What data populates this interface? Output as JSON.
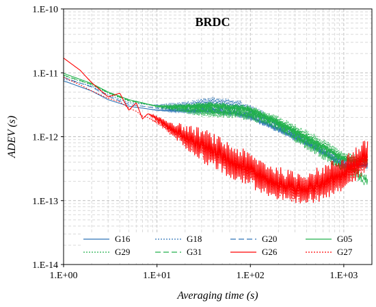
{
  "chart_data": {
    "type": "line",
    "title": "BRDC",
    "xlabel": "Averaging time (s)",
    "ylabel": "ADEV (s)",
    "x_scale": "log",
    "y_scale": "log",
    "xlim": [
      1,
      2000
    ],
    "ylim": [
      1e-14,
      1e-10
    ],
    "x_ticks": [
      "1.E+00",
      "1.E+01",
      "1.E+02",
      "1.E+03"
    ],
    "y_ticks": [
      "1.E-10",
      "1.E-11",
      "1.E-12",
      "1.E-13",
      "1.E-14"
    ],
    "grid": "major and minor, dashed",
    "legend_position": "bottom, inside plot",
    "colors": {
      "blue": "#2e75b6",
      "green": "#22b14c",
      "red": "#ff0000"
    },
    "series": [
      {
        "name": "G16",
        "color": "#2e75b6",
        "dash": "solid",
        "noise": 0.05,
        "x": [
          1,
          2,
          3,
          5,
          10,
          20,
          40,
          70,
          100,
          200,
          500,
          1000,
          1800
        ],
        "y": [
          7.5e-12,
          5.2e-12,
          3.8e-12,
          3e-12,
          2.6e-12,
          2.5e-12,
          2.5e-12,
          2.3e-12,
          2e-12,
          1.3e-12,
          6.5e-13,
          3.5e-13,
          3.5e-13
        ]
      },
      {
        "name": "G18",
        "color": "#2e75b6",
        "dash": "2,2",
        "noise": 0.07,
        "x": [
          1,
          2,
          3,
          5,
          10,
          20,
          40,
          70,
          100,
          200,
          500,
          1000,
          1800
        ],
        "y": [
          8e-12,
          6.2e-12,
          4.5e-12,
          3.4e-12,
          3.1e-12,
          3.2e-12,
          3.6e-12,
          3.3e-12,
          2.8e-12,
          1.6e-12,
          7e-13,
          4e-13,
          3.8e-13
        ]
      },
      {
        "name": "G20",
        "color": "#2e75b6",
        "dash": "8,4",
        "noise": 0.05,
        "x": [
          1,
          2,
          3,
          5,
          10,
          20,
          40,
          70,
          100,
          200,
          500,
          1000,
          1800
        ],
        "y": [
          8.5e-12,
          6e-12,
          4.3e-12,
          3.2e-12,
          2.8e-12,
          2.7e-12,
          2.8e-12,
          2.6e-12,
          2.3e-12,
          1.5e-12,
          7e-13,
          3.8e-13,
          3.6e-13
        ]
      },
      {
        "name": "G05",
        "color": "#22b14c",
        "dash": "solid",
        "noise": 0.06,
        "x": [
          1,
          2,
          3,
          5,
          10,
          20,
          40,
          70,
          100,
          200,
          500,
          1000,
          1800
        ],
        "y": [
          9.8e-12,
          6.8e-12,
          5e-12,
          3.8e-12,
          3e-12,
          3e-12,
          3.1e-12,
          2.9e-12,
          2.7e-12,
          1.7e-12,
          8e-13,
          4.5e-13,
          4e-13
        ]
      },
      {
        "name": "G29",
        "color": "#22b14c",
        "dash": "2,2",
        "noise": 0.08,
        "x": [
          1,
          2,
          3,
          5,
          10,
          20,
          40,
          70,
          100,
          200,
          500,
          1000,
          1800
        ],
        "y": [
          9e-12,
          6.5e-12,
          4.8e-12,
          3.6e-12,
          3e-12,
          2.6e-12,
          2.3e-12,
          2.4e-12,
          2.4e-12,
          1.8e-12,
          9e-13,
          5e-13,
          4.5e-13
        ]
      },
      {
        "name": "G31",
        "color": "#22b14c",
        "dash": "8,4",
        "noise": 0.1,
        "x": [
          1,
          2,
          3,
          5,
          10,
          20,
          40,
          70,
          100,
          200,
          500,
          1000,
          1800
        ],
        "y": [
          9.2e-12,
          6.6e-12,
          4.9e-12,
          3.7e-12,
          3e-12,
          2.8e-12,
          2.6e-12,
          2.4e-12,
          2.2e-12,
          1.5e-12,
          6.5e-13,
          3.5e-13,
          2e-13
        ]
      },
      {
        "name": "G26",
        "color": "#ff0000",
        "dash": "solid",
        "noise": 0.28,
        "x": [
          1,
          1.5,
          2,
          3,
          4,
          5,
          6,
          7,
          8,
          10,
          15,
          20,
          30,
          50,
          100,
          200,
          300,
          500,
          1000,
          1800
        ],
        "y": [
          1.7e-11,
          1.1e-11,
          7e-12,
          4.2e-12,
          4.8e-12,
          2.6e-12,
          3.4e-12,
          1.9e-12,
          2.3e-12,
          1.9e-12,
          1.3e-12,
          1e-12,
          7.5e-13,
          5e-13,
          3e-13,
          1.8e-13,
          1.5e-13,
          1.7e-13,
          2.8e-13,
          5e-13
        ]
      },
      {
        "name": "G27",
        "color": "#ff0000",
        "dash": "2,2",
        "noise": 0.2,
        "x": [
          1,
          1.5,
          2,
          3,
          4,
          5,
          6,
          7,
          8,
          10,
          15,
          20,
          30,
          50,
          100,
          200,
          300,
          500,
          1000,
          1800
        ],
        "y": [
          8.5e-12,
          6.5e-12,
          5.2e-12,
          4e-12,
          3.5e-12,
          2.8e-12,
          2.5e-12,
          2.1e-12,
          2e-12,
          1.7e-12,
          1.2e-12,
          9.5e-13,
          7e-13,
          4.5e-13,
          2.8e-13,
          1.7e-13,
          1.4e-13,
          1.6e-13,
          2.5e-13,
          4.2e-13
        ]
      }
    ]
  }
}
